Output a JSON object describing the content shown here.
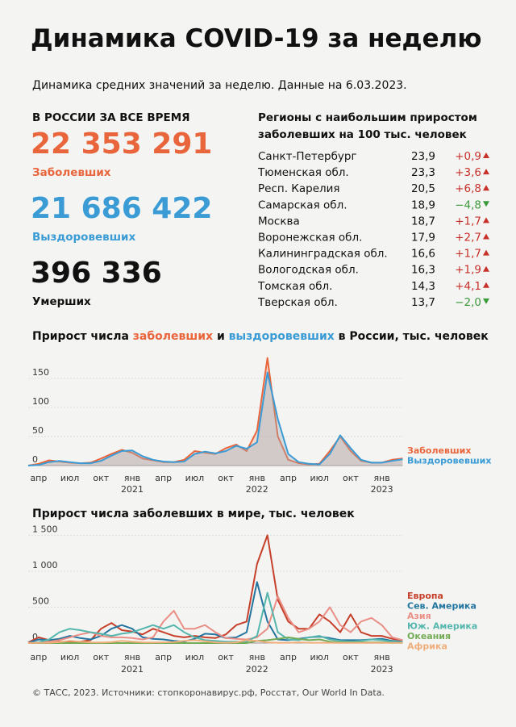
{
  "header": {
    "title": "Динамика COVID-19 за неделю",
    "subtitle": "Динамика средних значений за неделю. Данные на 6.03.2023."
  },
  "totals": {
    "heading": "В РОССИИ ЗА ВСЕ ВРЕМЯ",
    "items": [
      {
        "value": "22 353 291",
        "label": "Заболевших",
        "color": "#e9663d"
      },
      {
        "value": "21 686 422",
        "label": "Выздоровевших",
        "color": "#3a9bd5"
      },
      {
        "value": "396 336",
        "label": "Умерших",
        "color": "#111111"
      }
    ]
  },
  "regions": {
    "heading": [
      "Регионы с наибольшим приростом",
      "заболевших на 100 тыс. человек"
    ],
    "rows": [
      [
        "Санкт-Петербург",
        "23,9",
        "+0,9"
      ],
      [
        "Тюменская обл.",
        "23,3",
        "+3,6"
      ],
      [
        "Респ. Карелия",
        "20,5",
        "+6,8"
      ],
      [
        "Самарская обл.",
        "18,9",
        "−4,8"
      ],
      [
        "Москва",
        "18,7",
        "+1,7"
      ],
      [
        "Воронежская обл.",
        "17,9",
        "+2,7"
      ],
      [
        "Калининградская обл.",
        "16,6",
        "+1,7"
      ],
      [
        "Вологодская обл.",
        "16,3",
        "+1,9"
      ],
      [
        "Томская обл.",
        "14,3",
        "+4,1"
      ],
      [
        "Тверская обл.",
        "13,7",
        "−2,0"
      ]
    ]
  },
  "chart_data": [
    {
      "type": "line",
      "title_parts": [
        "Прирост числа",
        "заболевших",
        "и",
        "выздоровевших",
        "в России, тыс. человек"
      ],
      "categories": [
        null,
        "апр",
        null,
        null,
        "июл",
        null,
        null,
        "окт",
        null,
        null,
        "янв",
        null,
        null,
        "апр",
        null,
        null,
        "июл",
        null,
        null,
        "окт",
        null,
        null,
        "янв",
        null,
        null,
        "апр",
        null,
        null,
        "июл",
        null,
        null,
        "окт",
        null,
        null,
        "янв",
        null,
        null
      ],
      "years": [
        null,
        null,
        null,
        null,
        null,
        null,
        null,
        null,
        null,
        null,
        "2021",
        null,
        null,
        null,
        null,
        null,
        null,
        null,
        null,
        null,
        null,
        null,
        "2022",
        null,
        null,
        null,
        null,
        null,
        null,
        null,
        null,
        null,
        null,
        null,
        "2023",
        null,
        null
      ],
      "series": [
        {
          "name": "Заболевших",
          "color": "#e9663d",
          "values": [
            0,
            3,
            9,
            7,
            5,
            4,
            5,
            12,
            20,
            27,
            22,
            12,
            9,
            6,
            6,
            10,
            25,
            22,
            20,
            30,
            36,
            25,
            60,
            185,
            50,
            10,
            4,
            2,
            3,
            25,
            50,
            25,
            8,
            5,
            5,
            10,
            12
          ]
        },
        {
          "name": "Выздоровевших",
          "color": "#3a9bd5",
          "values": [
            0,
            1,
            6,
            8,
            6,
            4,
            4,
            8,
            17,
            25,
            26,
            16,
            10,
            7,
            6,
            7,
            20,
            24,
            21,
            25,
            34,
            29,
            40,
            160,
            80,
            20,
            6,
            3,
            2,
            20,
            52,
            30,
            10,
            5,
            5,
            8,
            11
          ]
        }
      ],
      "ylim": [
        0,
        190
      ],
      "yticks": [
        0,
        50,
        100,
        150
      ],
      "area": true
    },
    {
      "type": "line",
      "title": "Прирост числа заболевших в мире, тыс. человек",
      "categories": [
        null,
        "апр",
        null,
        null,
        "июл",
        null,
        null,
        "окт",
        null,
        null,
        "янв",
        null,
        null,
        "апр",
        null,
        null,
        "июл",
        null,
        null,
        "окт",
        null,
        null,
        "янв",
        null,
        null,
        "апр",
        null,
        null,
        "июл",
        null,
        null,
        "окт",
        null,
        null,
        "янв",
        null,
        null
      ],
      "years": [
        null,
        null,
        null,
        null,
        null,
        null,
        null,
        null,
        null,
        null,
        "2021",
        null,
        null,
        null,
        null,
        null,
        null,
        null,
        null,
        null,
        null,
        null,
        "2022",
        null,
        null,
        null,
        null,
        null,
        null,
        null,
        null,
        null,
        null,
        null,
        "2023",
        null,
        null
      ],
      "series": [
        {
          "name": "Европа",
          "color": "#c7402b",
          "values": [
            10,
            80,
            40,
            20,
            15,
            20,
            40,
            200,
            280,
            180,
            160,
            120,
            200,
            150,
            100,
            80,
            100,
            80,
            70,
            120,
            250,
            300,
            1100,
            1500,
            600,
            300,
            200,
            200,
            400,
            300,
            150,
            400,
            150,
            100,
            100,
            60,
            40
          ]
        },
        {
          "name": "Сев. Америка",
          "color": "#23759f",
          "values": [
            5,
            50,
            40,
            60,
            100,
            70,
            50,
            100,
            200,
            250,
            200,
            80,
            60,
            50,
            30,
            20,
            60,
            130,
            120,
            70,
            80,
            150,
            850,
            300,
            50,
            40,
            60,
            80,
            90,
            70,
            40,
            40,
            40,
            50,
            60,
            30,
            20
          ]
        },
        {
          "name": "Азия",
          "color": "#ea8f86",
          "values": [
            5,
            10,
            20,
            40,
            80,
            120,
            150,
            100,
            80,
            80,
            70,
            50,
            80,
            300,
            450,
            200,
            200,
            250,
            150,
            70,
            60,
            50,
            80,
            200,
            650,
            350,
            150,
            200,
            300,
            500,
            250,
            150,
            300,
            350,
            250,
            80,
            40
          ]
        },
        {
          "name": "Юж. Америка",
          "color": "#55b6ad",
          "values": [
            0,
            10,
            50,
            150,
            200,
            180,
            150,
            130,
            100,
            130,
            150,
            200,
            250,
            200,
            250,
            150,
            80,
            40,
            30,
            20,
            20,
            20,
            100,
            700,
            150,
            50,
            40,
            80,
            100,
            50,
            30,
            20,
            30,
            50,
            40,
            20,
            15
          ]
        },
        {
          "name": "Океания",
          "color": "#74ab57",
          "values": [
            0,
            0,
            0,
            0,
            0,
            0,
            0,
            0,
            0,
            0,
            0,
            0,
            0,
            0,
            0,
            0,
            0,
            0,
            0,
            0,
            0,
            0,
            30,
            40,
            60,
            80,
            60,
            40,
            50,
            20,
            10,
            10,
            10,
            10,
            10,
            5,
            5
          ]
        },
        {
          "name": "Африка",
          "color": "#f0ae7c",
          "values": [
            0,
            2,
            5,
            15,
            30,
            20,
            10,
            8,
            15,
            30,
            20,
            10,
            8,
            10,
            15,
            30,
            40,
            25,
            10,
            5,
            10,
            40,
            30,
            10,
            5,
            5,
            10,
            5,
            5,
            5,
            3,
            3,
            3,
            3,
            3,
            2,
            2
          ]
        }
      ],
      "ylim": [
        0,
        1650
      ],
      "yticks": [
        0,
        500,
        {
          "value": 1000,
          "label": "1 000"
        },
        {
          "value": 1500,
          "label": "1 500"
        }
      ]
    }
  ],
  "footer": "© ТАСС, 2023. Источники: стопкоронавирус.рф, Росстат, Our World In Data."
}
